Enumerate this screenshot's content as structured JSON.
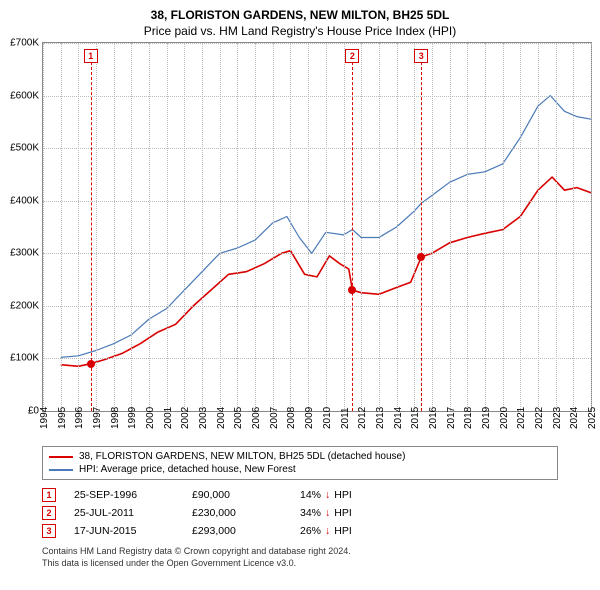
{
  "title_main": "38, FLORISTON GARDENS, NEW MILTON, BH25 5DL",
  "title_sub": "Price paid vs. HM Land Registry's House Price Index (HPI)",
  "chart": {
    "type": "line",
    "background_color": "#ffffff",
    "grid_color": "#bbbbbb",
    "border_color": "#888888",
    "ylim": [
      0,
      700000
    ],
    "ytick_step": 100000,
    "ytick_labels": [
      "£0",
      "£100K",
      "£200K",
      "£300K",
      "£400K",
      "£500K",
      "£600K",
      "£700K"
    ],
    "xlim": [
      1994,
      2025
    ],
    "xticks": [
      1994,
      1995,
      1996,
      1997,
      1998,
      1999,
      2000,
      2001,
      2002,
      2003,
      2004,
      2005,
      2006,
      2007,
      2008,
      2009,
      2010,
      2011,
      2012,
      2013,
      2014,
      2015,
      2016,
      2017,
      2018,
      2019,
      2020,
      2021,
      2022,
      2023,
      2024,
      2025
    ],
    "label_fontsize": 10,
    "line_width_primary": 1.6,
    "line_width_secondary": 1.2,
    "series": {
      "property": {
        "label": "38, FLORISTON GARDENS, NEW MILTON, BH25 5DL (detached house)",
        "color": "#d90000",
        "data": [
          [
            1995.0,
            88000
          ],
          [
            1996.0,
            85000
          ],
          [
            1996.7,
            90000
          ],
          [
            1997.5,
            98000
          ],
          [
            1998.5,
            110000
          ],
          [
            1999.5,
            128000
          ],
          [
            2000.5,
            150000
          ],
          [
            2001.5,
            165000
          ],
          [
            2002.5,
            200000
          ],
          [
            2003.5,
            230000
          ],
          [
            2004.5,
            260000
          ],
          [
            2005.5,
            265000
          ],
          [
            2006.5,
            280000
          ],
          [
            2007.5,
            300000
          ],
          [
            2008.0,
            305000
          ],
          [
            2008.8,
            260000
          ],
          [
            2009.5,
            255000
          ],
          [
            2010.2,
            295000
          ],
          [
            2010.8,
            280000
          ],
          [
            2011.3,
            270000
          ],
          [
            2011.5,
            230000
          ],
          [
            2012.0,
            225000
          ],
          [
            2013.0,
            222000
          ],
          [
            2014.0,
            235000
          ],
          [
            2014.8,
            245000
          ],
          [
            2015.4,
            293000
          ],
          [
            2016.0,
            300000
          ],
          [
            2017.0,
            320000
          ],
          [
            2018.0,
            330000
          ],
          [
            2019.0,
            338000
          ],
          [
            2020.0,
            345000
          ],
          [
            2021.0,
            370000
          ],
          [
            2022.0,
            420000
          ],
          [
            2022.8,
            445000
          ],
          [
            2023.5,
            420000
          ],
          [
            2024.2,
            425000
          ],
          [
            2025.0,
            415000
          ]
        ]
      },
      "hpi": {
        "label": "HPI: Average price, detached house, New Forest",
        "color": "#4a7ab8",
        "data": [
          [
            1995.0,
            102000
          ],
          [
            1996.0,
            105000
          ],
          [
            1997.0,
            115000
          ],
          [
            1998.0,
            128000
          ],
          [
            1999.0,
            145000
          ],
          [
            2000.0,
            175000
          ],
          [
            2001.0,
            195000
          ],
          [
            2002.0,
            230000
          ],
          [
            2003.0,
            265000
          ],
          [
            2004.0,
            300000
          ],
          [
            2005.0,
            310000
          ],
          [
            2006.0,
            325000
          ],
          [
            2007.0,
            358000
          ],
          [
            2007.8,
            370000
          ],
          [
            2008.5,
            330000
          ],
          [
            2009.2,
            300000
          ],
          [
            2010.0,
            340000
          ],
          [
            2011.0,
            335000
          ],
          [
            2011.5,
            345000
          ],
          [
            2012.0,
            330000
          ],
          [
            2013.0,
            330000
          ],
          [
            2014.0,
            350000
          ],
          [
            2015.0,
            380000
          ],
          [
            2015.4,
            395000
          ],
          [
            2016.0,
            410000
          ],
          [
            2017.0,
            435000
          ],
          [
            2018.0,
            450000
          ],
          [
            2019.0,
            455000
          ],
          [
            2020.0,
            470000
          ],
          [
            2021.0,
            520000
          ],
          [
            2022.0,
            580000
          ],
          [
            2022.7,
            600000
          ],
          [
            2023.5,
            570000
          ],
          [
            2024.2,
            560000
          ],
          [
            2025.0,
            555000
          ]
        ]
      }
    },
    "markers": [
      {
        "n": "1",
        "year": 1996.7,
        "sale_value": 90000,
        "color": "#d90000"
      },
      {
        "n": "2",
        "year": 2011.5,
        "sale_value": 230000,
        "color": "#d90000"
      },
      {
        "n": "3",
        "year": 2015.4,
        "sale_value": 293000,
        "color": "#d90000"
      }
    ]
  },
  "legend": {
    "rows": [
      {
        "color": "#d90000",
        "label_key": "chart.series.property.label"
      },
      {
        "color": "#4a7ab8",
        "label_key": "chart.series.hpi.label"
      }
    ]
  },
  "sales": [
    {
      "n": "1",
      "color": "#d90000",
      "date": "25-SEP-1996",
      "price": "£90,000",
      "diff": "14%",
      "dir": "↓",
      "vs": "HPI"
    },
    {
      "n": "2",
      "color": "#d90000",
      "date": "25-JUL-2011",
      "price": "£230,000",
      "diff": "34%",
      "dir": "↓",
      "vs": "HPI"
    },
    {
      "n": "3",
      "color": "#d90000",
      "date": "17-JUN-2015",
      "price": "£293,000",
      "diff": "26%",
      "dir": "↓",
      "vs": "HPI"
    }
  ],
  "footnote_line1": "Contains HM Land Registry data © Crown copyright and database right 2024.",
  "footnote_line2": "This data is licensed under the Open Government Licence v3.0."
}
